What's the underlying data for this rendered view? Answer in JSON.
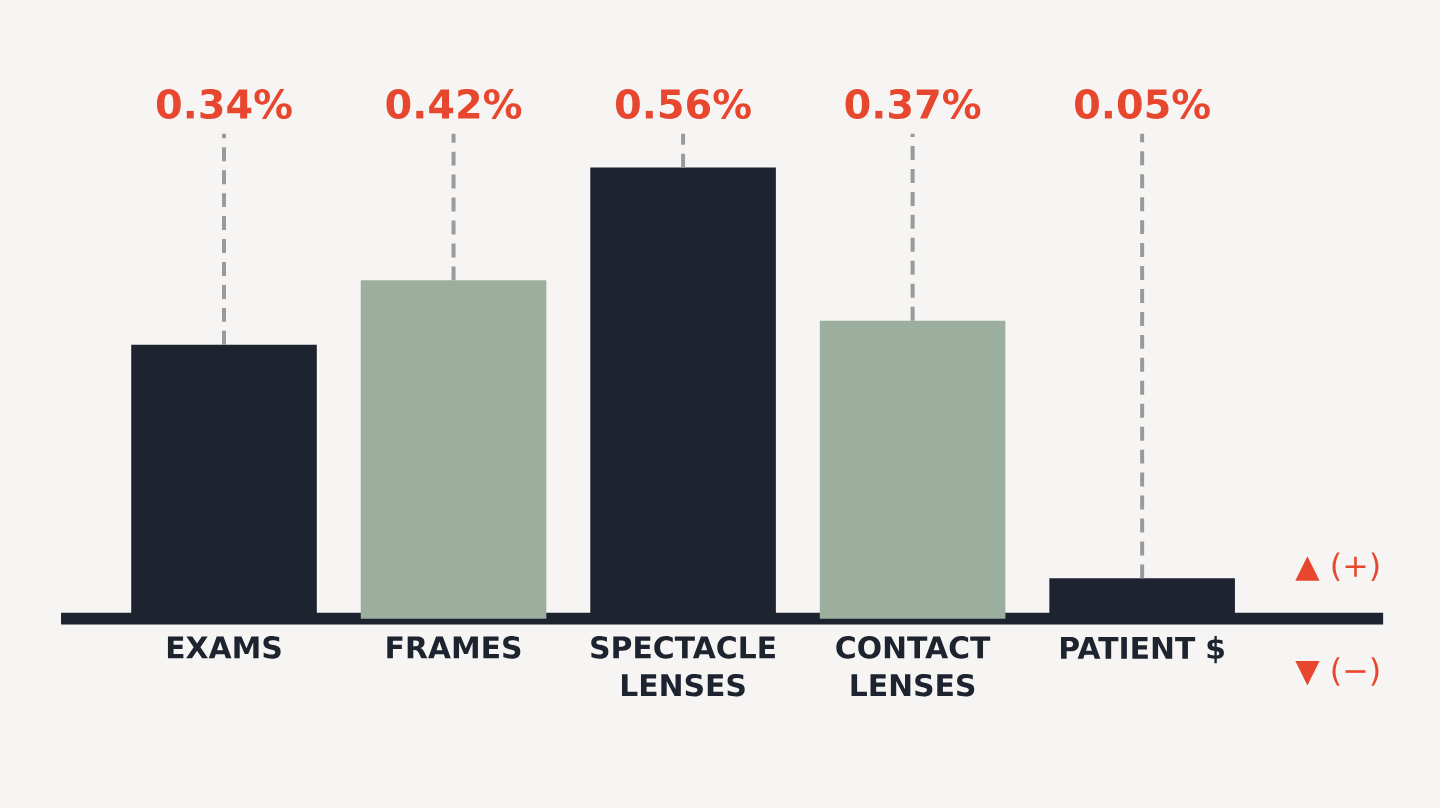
{
  "chart_data": {
    "type": "bar",
    "categories": [
      "EXAMS",
      "FRAMES",
      "SPECTACLE LENSES",
      "CONTACT LENSES",
      "PATIENT $"
    ],
    "values": [
      0.34,
      0.42,
      0.56,
      0.37,
      0.05
    ],
    "colors": [
      "#1e2330",
      "#9cae9e",
      "#1e2330",
      "#9cae9e",
      "#1e2330"
    ],
    "value_labels": [
      "0.34%",
      "0.42%",
      "0.56%",
      "0.37%",
      "0.05%"
    ],
    "annotations": [
      "▲ (+)",
      "▼ (−)"
    ]
  }
}
